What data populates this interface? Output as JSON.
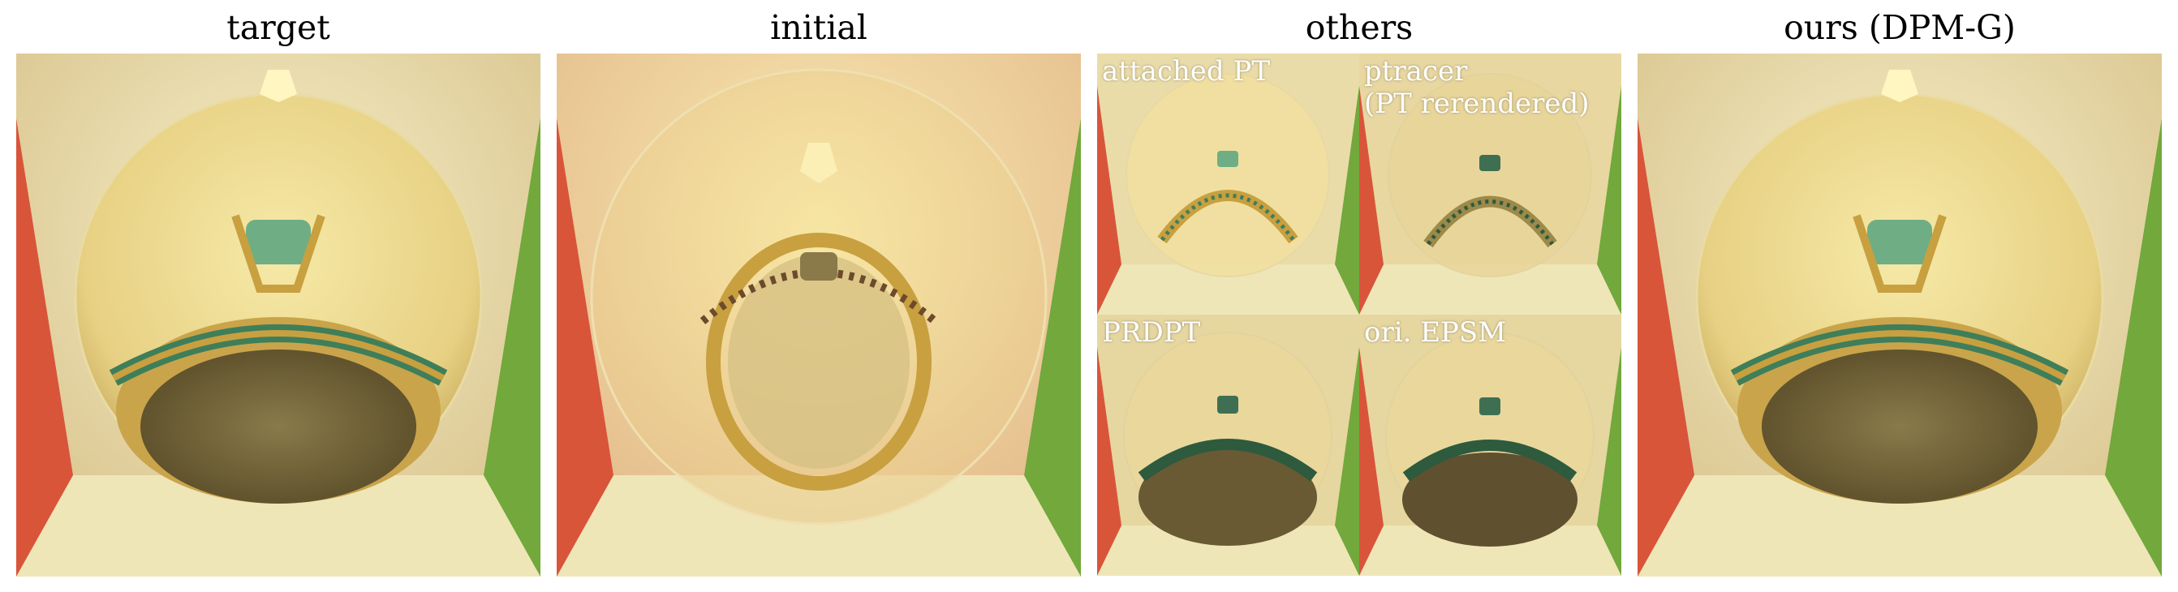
{
  "columns": {
    "target": "target",
    "initial": "initial",
    "others": "others",
    "ours": "ours (DPM-G)"
  },
  "others": {
    "attached_pt": "attached PT",
    "ptracer_line1": "ptracer",
    "ptracer_line2": "(PT rerendered)",
    "prdpt": "PRDPT",
    "ori_epsm": "ori. EPSM"
  },
  "colors": {
    "left_wall": "#d8553a",
    "right_wall": "#72a83c",
    "back_wall": "#e8d8a4",
    "floor": "#efe6b8",
    "gold": "#c8a040",
    "gem": "#6fae84"
  },
  "icons": [
    "ring-illustration",
    "glass-sphere"
  ]
}
